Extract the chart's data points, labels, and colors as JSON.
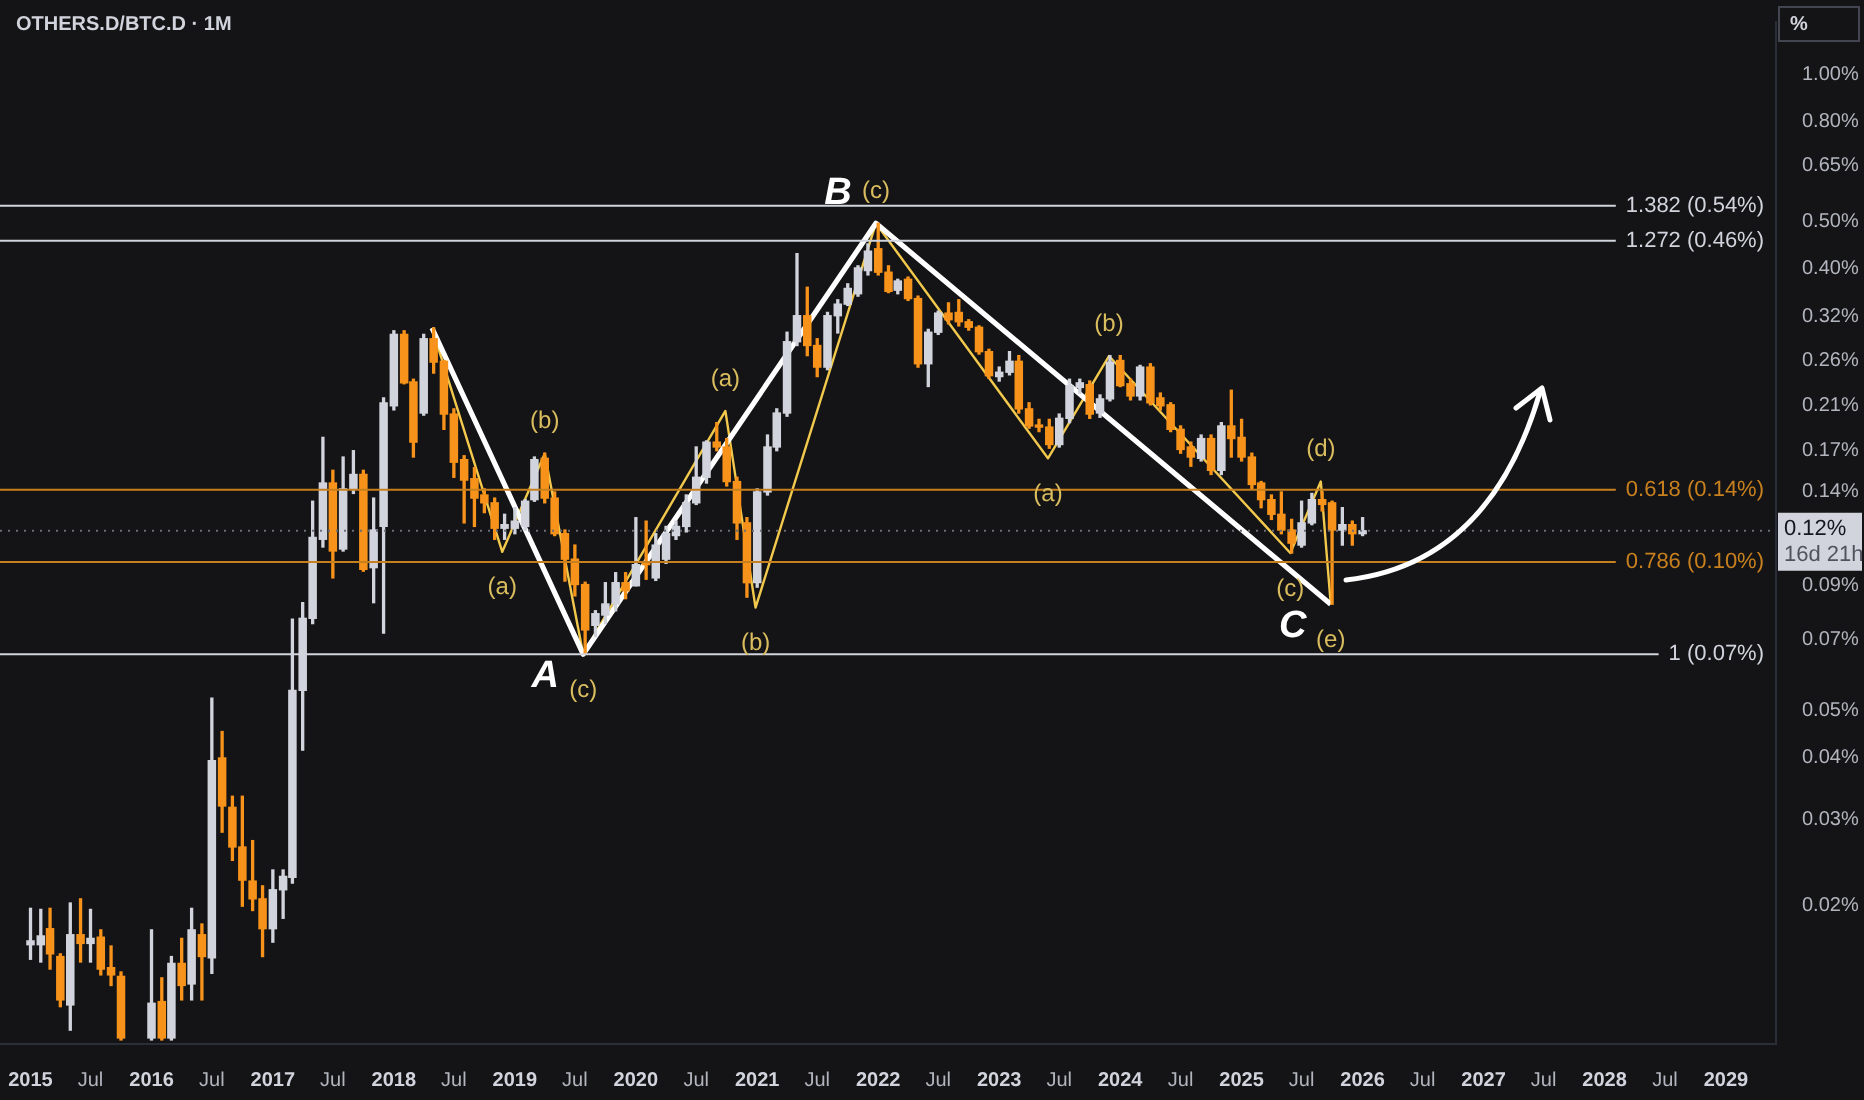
{
  "chart_data": {
    "type": "candlestick",
    "title": "OTHERS.D/BTC.D · 1M",
    "ylabel": "%",
    "log": "y",
    "x": [
      "2015-01",
      "2015-02",
      "2015-03",
      "2015-04",
      "2015-05",
      "2015-06",
      "2015-07",
      "2015-08",
      "2015-09",
      "2015-10",
      "2016-01",
      "2016-02",
      "2016-03",
      "2016-04",
      "2016-05",
      "2016-06",
      "2016-07",
      "2016-08",
      "2016-09",
      "2016-10",
      "2016-11",
      "2016-12",
      "2017-01",
      "2017-02",
      "2017-03",
      "2017-04",
      "2017-05",
      "2017-06",
      "2017-07",
      "2017-08",
      "2017-09",
      "2017-10",
      "2017-11",
      "2017-12",
      "2018-01",
      "2018-02",
      "2018-03",
      "2018-04",
      "2018-05",
      "2018-06",
      "2018-07",
      "2018-08",
      "2018-09",
      "2018-10",
      "2018-11",
      "2018-12",
      "2019-01",
      "2019-02",
      "2019-03",
      "2019-04",
      "2019-05",
      "2019-06",
      "2019-07",
      "2019-08",
      "2019-09",
      "2019-10",
      "2019-11",
      "2019-12",
      "2020-01",
      "2020-02",
      "2020-03",
      "2020-04",
      "2020-05",
      "2020-06",
      "2020-07",
      "2020-08",
      "2020-09",
      "2020-10",
      "2020-11",
      "2020-12",
      "2021-01",
      "2021-02",
      "2021-03",
      "2021-04",
      "2021-05",
      "2021-06",
      "2021-07",
      "2021-08",
      "2021-09",
      "2021-10",
      "2021-11",
      "2021-12",
      "2022-01",
      "2022-02",
      "2022-03",
      "2022-04",
      "2022-05",
      "2022-06",
      "2022-07",
      "2022-08",
      "2022-09",
      "2022-10",
      "2022-11",
      "2022-12",
      "2023-01",
      "2023-02",
      "2023-03",
      "2023-04",
      "2023-05",
      "2023-06",
      "2023-07",
      "2023-08",
      "2023-09",
      "2023-10",
      "2023-11",
      "2023-12",
      "2024-01",
      "2024-02",
      "2024-03",
      "2024-04",
      "2024-05",
      "2024-06",
      "2024-07",
      "2024-08",
      "2024-09",
      "2024-10",
      "2024-11",
      "2024-12",
      "2025-01",
      "2025-02",
      "2025-03",
      "2025-04",
      "2025-05",
      "2025-06",
      "2025-07",
      "2025-08",
      "2025-09",
      "2025-10",
      "2025-11",
      "2025-12",
      "2026-01"
    ],
    "ohlc": [
      [
        0.0166,
        0.0197,
        0.0155,
        0.0169
      ],
      [
        0.0166,
        0.0196,
        0.0153,
        0.0173
      ],
      [
        0.0179,
        0.0197,
        0.0148,
        0.0159
      ],
      [
        0.0157,
        0.0159,
        0.0124,
        0.0128
      ],
      [
        0.0125,
        0.0202,
        0.0111,
        0.0174
      ],
      [
        0.0174,
        0.0206,
        0.0153,
        0.0167
      ],
      [
        0.0167,
        0.0196,
        0.0153,
        0.0171
      ],
      [
        0.0172,
        0.0178,
        0.0144,
        0.0148
      ],
      [
        0.0149,
        0.0165,
        0.0137,
        0.0144
      ],
      [
        0.0143,
        0.0146,
        0.0106,
        0.0107
      ],
      [
        0.0107,
        0.0178,
        0.0106,
        0.0126
      ],
      [
        0.0127,
        0.0142,
        0.0106,
        0.0107
      ],
      [
        0.0107,
        0.0157,
        0.0106,
        0.0152
      ],
      [
        0.0152,
        0.0171,
        0.0128,
        0.0137
      ],
      [
        0.0138,
        0.0197,
        0.0128,
        0.0178
      ],
      [
        0.0174,
        0.0183,
        0.0128,
        0.0157
      ],
      [
        0.0156,
        0.053,
        0.0145,
        0.0395
      ],
      [
        0.04,
        0.0453,
        0.0282,
        0.0319
      ],
      [
        0.0317,
        0.0334,
        0.0247,
        0.0263
      ],
      [
        0.0263,
        0.0334,
        0.0199,
        0.0225
      ],
      [
        0.0224,
        0.0271,
        0.0195,
        0.0206
      ],
      [
        0.0206,
        0.0219,
        0.0157,
        0.0179
      ],
      [
        0.0179,
        0.0236,
        0.0168,
        0.0215
      ],
      [
        0.0215,
        0.0236,
        0.0188,
        0.0229
      ],
      [
        0.0228,
        0.0769,
        0.0222,
        0.055
      ],
      [
        0.055,
        0.0831,
        0.0415,
        0.0772
      ],
      [
        0.0772,
        0.134,
        0.0753,
        0.113
      ],
      [
        0.112,
        0.181,
        0.108,
        0.146
      ],
      [
        0.146,
        0.155,
        0.0934,
        0.106
      ],
      [
        0.107,
        0.165,
        0.106,
        0.142
      ],
      [
        0.142,
        0.17,
        0.139,
        0.152
      ],
      [
        0.152,
        0.155,
        0.0964,
        0.0972
      ],
      [
        0.098,
        0.136,
        0.0831,
        0.117
      ],
      [
        0.119,
        0.218,
        0.072,
        0.213
      ],
      [
        0.21,
        0.299,
        0.206,
        0.294
      ],
      [
        0.294,
        0.299,
        0.233,
        0.234
      ],
      [
        0.235,
        0.238,
        0.165,
        0.177
      ],
      [
        0.203,
        0.294,
        0.201,
        0.288
      ],
      [
        0.288,
        0.303,
        0.245,
        0.258
      ],
      [
        0.259,
        0.26,
        0.188,
        0.202
      ],
      [
        0.202,
        0.207,
        0.15,
        0.161
      ],
      [
        0.163,
        0.166,
        0.121,
        0.148
      ],
      [
        0.149,
        0.157,
        0.119,
        0.136
      ],
      [
        0.138,
        0.142,
        0.127,
        0.133
      ],
      [
        0.133,
        0.136,
        0.112,
        0.118
      ],
      [
        0.118,
        0.126,
        0.112,
        0.12
      ],
      [
        0.118,
        0.13,
        0.115,
        0.122
      ],
      [
        0.119,
        0.135,
        0.117,
        0.134
      ],
      [
        0.135,
        0.165,
        0.134,
        0.163
      ],
      [
        0.164,
        0.168,
        0.133,
        0.136
      ],
      [
        0.136,
        0.14,
        0.114,
        0.115
      ],
      [
        0.115,
        0.117,
        0.092,
        0.102
      ],
      [
        0.102,
        0.109,
        0.0858,
        0.0905
      ],
      [
        0.0905,
        0.0915,
        0.0655,
        0.0731
      ],
      [
        0.0747,
        0.08,
        0.0708,
        0.0789
      ],
      [
        0.0784,
        0.0913,
        0.0753,
        0.0826
      ],
      [
        0.0826,
        0.0957,
        0.08,
        0.0913
      ],
      [
        0.0913,
        0.0957,
        0.0847,
        0.0879
      ],
      [
        0.09,
        0.124,
        0.09,
        0.0994
      ],
      [
        0.1,
        0.122,
        0.0928,
        0.0994
      ],
      [
        0.0934,
        0.115,
        0.0923,
        0.109
      ],
      [
        0.102,
        0.119,
        0.1,
        0.115
      ],
      [
        0.114,
        0.122,
        0.112,
        0.119
      ],
      [
        0.119,
        0.138,
        0.116,
        0.133
      ],
      [
        0.133,
        0.173,
        0.132,
        0.15
      ],
      [
        0.15,
        0.178,
        0.146,
        0.177
      ],
      [
        0.177,
        0.194,
        0.17,
        0.173
      ],
      [
        0.173,
        0.18,
        0.144,
        0.147
      ],
      [
        0.147,
        0.15,
        0.112,
        0.121
      ],
      [
        0.121,
        0.124,
        0.0853,
        0.0913
      ],
      [
        0.0913,
        0.142,
        0.0894,
        0.14
      ],
      [
        0.14,
        0.183,
        0.138,
        0.173
      ],
      [
        0.173,
        0.207,
        0.17,
        0.203
      ],
      [
        0.203,
        0.297,
        0.2,
        0.284
      ],
      [
        0.284,
        0.43,
        0.279,
        0.321
      ],
      [
        0.321,
        0.367,
        0.266,
        0.279
      ],
      [
        0.279,
        0.288,
        0.241,
        0.252
      ],
      [
        0.252,
        0.326,
        0.249,
        0.321
      ],
      [
        0.321,
        0.346,
        0.296,
        0.339
      ],
      [
        0.339,
        0.373,
        0.337,
        0.365
      ],
      [
        0.356,
        0.406,
        0.352,
        0.402
      ],
      [
        0.397,
        0.45,
        0.389,
        0.435
      ],
      [
        0.44,
        0.496,
        0.389,
        0.394
      ],
      [
        0.394,
        0.406,
        0.358,
        0.36
      ],
      [
        0.362,
        0.381,
        0.356,
        0.378
      ],
      [
        0.381,
        0.385,
        0.345,
        0.348
      ],
      [
        0.348,
        0.352,
        0.252,
        0.256
      ],
      [
        0.256,
        0.301,
        0.23,
        0.297
      ],
      [
        0.297,
        0.328,
        0.294,
        0.325
      ],
      [
        0.325,
        0.341,
        0.309,
        0.315
      ],
      [
        0.326,
        0.346,
        0.306,
        0.312
      ],
      [
        0.312,
        0.315,
        0.3,
        0.304
      ],
      [
        0.304,
        0.306,
        0.268,
        0.271
      ],
      [
        0.271,
        0.274,
        0.239,
        0.242
      ],
      [
        0.241,
        0.252,
        0.236,
        0.246
      ],
      [
        0.246,
        0.271,
        0.243,
        0.259
      ],
      [
        0.259,
        0.266,
        0.203,
        0.207
      ],
      [
        0.207,
        0.213,
        0.189,
        0.191
      ],
      [
        0.191,
        0.197,
        0.186,
        0.19
      ],
      [
        0.19,
        0.197,
        0.172,
        0.175
      ],
      [
        0.175,
        0.202,
        0.173,
        0.198
      ],
      [
        0.198,
        0.238,
        0.194,
        0.231
      ],
      [
        0.229,
        0.238,
        0.223,
        0.234
      ],
      [
        0.232,
        0.236,
        0.198,
        0.202
      ],
      [
        0.203,
        0.221,
        0.199,
        0.217
      ],
      [
        0.217,
        0.266,
        0.215,
        0.258
      ],
      [
        0.26,
        0.266,
        0.23,
        0.231
      ],
      [
        0.233,
        0.238,
        0.216,
        0.22
      ],
      [
        0.22,
        0.254,
        0.216,
        0.252
      ],
      [
        0.252,
        0.256,
        0.211,
        0.213
      ],
      [
        0.218,
        0.223,
        0.206,
        0.21
      ],
      [
        0.211,
        0.213,
        0.186,
        0.188
      ],
      [
        0.188,
        0.191,
        0.168,
        0.171
      ],
      [
        0.173,
        0.177,
        0.158,
        0.165
      ],
      [
        0.164,
        0.183,
        0.162,
        0.18
      ],
      [
        0.18,
        0.183,
        0.152,
        0.155
      ],
      [
        0.155,
        0.194,
        0.152,
        0.191
      ],
      [
        0.191,
        0.226,
        0.165,
        0.18
      ],
      [
        0.181,
        0.197,
        0.162,
        0.165
      ],
      [
        0.165,
        0.168,
        0.142,
        0.145
      ],
      [
        0.146,
        0.147,
        0.13,
        0.135
      ],
      [
        0.135,
        0.138,
        0.123,
        0.126
      ],
      [
        0.126,
        0.14,
        0.115,
        0.117
      ],
      [
        0.117,
        0.123,
        0.105,
        0.11
      ],
      [
        0.109,
        0.134,
        0.108,
        0.121
      ],
      [
        0.121,
        0.139,
        0.12,
        0.135
      ],
      [
        0.135,
        0.14,
        0.128,
        0.132
      ],
      [
        0.133,
        0.134,
        0.0825,
        0.117
      ],
      [
        0.117,
        0.13,
        0.109,
        0.12
      ],
      [
        0.12,
        0.122,
        0.109,
        0.115
      ],
      [
        0.115,
        0.124,
        0.114,
        0.1166
      ]
    ],
    "colors": [
      "#d1d4dc",
      "#d1d4dc",
      "#f7931a",
      "#f7931a",
      "#d1d4dc",
      "#f7931a",
      "#d1d4dc",
      "#f7931a",
      "#f7931a",
      "#f7931a",
      "#d1d4dc",
      "#f7931a",
      "#d1d4dc",
      "#f7931a",
      "#d1d4dc",
      "#f7931a",
      "#d1d4dc",
      "#f7931a",
      "#f7931a",
      "#f7931a",
      "#f7931a",
      "#f7931a",
      "#d1d4dc",
      "#d1d4dc",
      "#d1d4dc",
      "#d1d4dc",
      "#d1d4dc",
      "#d1d4dc",
      "#f7931a",
      "#d1d4dc",
      "#d1d4dc",
      "#f7931a",
      "#d1d4dc",
      "#d1d4dc",
      "#d1d4dc",
      "#f7931a",
      "#f7931a",
      "#d1d4dc",
      "#f7931a",
      "#f7931a",
      "#f7931a",
      "#f7931a",
      "#f7931a",
      "#f7931a",
      "#f7931a",
      "#d1d4dc",
      "#d1d4dc",
      "#d1d4dc",
      "#d1d4dc",
      "#f7931a",
      "#f7931a",
      "#f7931a",
      "#f7931a",
      "#f7931a",
      "#d1d4dc",
      "#d1d4dc",
      "#d1d4dc",
      "#f7931a",
      "#d1d4dc",
      "#f7931a",
      "#d1d4dc",
      "#d1d4dc",
      "#d1d4dc",
      "#d1d4dc",
      "#d1d4dc",
      "#d1d4dc",
      "#f7931a",
      "#f7931a",
      "#f7931a",
      "#f7931a",
      "#d1d4dc",
      "#d1d4dc",
      "#d1d4dc",
      "#d1d4dc",
      "#d1d4dc",
      "#f7931a",
      "#f7931a",
      "#d1d4dc",
      "#d1d4dc",
      "#d1d4dc",
      "#d1d4dc",
      "#d1d4dc",
      "#f7931a",
      "#f7931a",
      "#d1d4dc",
      "#f7931a",
      "#f7931a",
      "#d1d4dc",
      "#d1d4dc",
      "#f7931a",
      "#f7931a",
      "#f7931a",
      "#f7931a",
      "#f7931a",
      "#d1d4dc",
      "#d1d4dc",
      "#f7931a",
      "#f7931a",
      "#f7931a",
      "#f7931a",
      "#d1d4dc",
      "#d1d4dc",
      "#d1d4dc",
      "#f7931a",
      "#d1d4dc",
      "#d1d4dc",
      "#f7931a",
      "#f7931a",
      "#d1d4dc",
      "#f7931a",
      "#f7931a",
      "#f7931a",
      "#f7931a",
      "#f7931a",
      "#d1d4dc",
      "#f7931a",
      "#d1d4dc",
      "#f7931a",
      "#f7931a",
      "#f7931a",
      "#f7931a",
      "#f7931a",
      "#f7931a",
      "#f7931a",
      "#d1d4dc",
      "#d1d4dc",
      "#f7931a",
      "#f7931a",
      "#d1d4dc",
      "#f7931a",
      "#d1d4dc"
    ],
    "series": [
      {
        "type": "line",
        "color": "#ffffff",
        "x": [
          "2018-04-26",
          "2019-07-26",
          "2021-12-25",
          "2025-09-27"
        ],
        "values": [
          0.303,
          0.0652,
          0.496,
          0.0825
        ]
      },
      {
        "type": "line",
        "color": "#f2c94c",
        "x": [
          "2018-04-26",
          "2018-11-24",
          "2019-04-01",
          "2019-07-26",
          "2020-09-27",
          "2020-12-27",
          "2021-12-25",
          "2023-05-28",
          "2023-11-28",
          "2025-05-28",
          "2025-08-28",
          "2025-09-27"
        ],
        "values": [
          0.303,
          0.1056,
          0.1675,
          0.0652,
          0.205,
          0.0812,
          0.496,
          0.164,
          0.2655,
          0.105,
          0.147,
          0.0825
        ]
      }
    ],
    "xlim": [
      "2014-10-01",
      "2029-06-01"
    ],
    "xticks": [
      {
        "value": "2015-01-01",
        "label": "2015"
      },
      {
        "value": "2015-07-01",
        "label": "Jul"
      },
      {
        "value": "2016-01-01",
        "label": "2016"
      },
      {
        "value": "2016-07-01",
        "label": "Jul"
      },
      {
        "value": "2017-01-01",
        "label": "2017"
      },
      {
        "value": "2017-07-01",
        "label": "Jul"
      },
      {
        "value": "2018-01-01",
        "label": "2018"
      },
      {
        "value": "2018-07-01",
        "label": "Jul"
      },
      {
        "value": "2019-01-01",
        "label": "2019"
      },
      {
        "value": "2019-07-01",
        "label": "Jul"
      },
      {
        "value": "2020-01-01",
        "label": "2020"
      },
      {
        "value": "2020-07-01",
        "label": "Jul"
      },
      {
        "value": "2021-01-01",
        "label": "2021"
      },
      {
        "value": "2021-07-01",
        "label": "Jul"
      },
      {
        "value": "2022-01-01",
        "label": "2022"
      },
      {
        "value": "2022-07-01",
        "label": "Jul"
      },
      {
        "value": "2023-01-01",
        "label": "2023"
      },
      {
        "value": "2023-07-01",
        "label": "Jul"
      },
      {
        "value": "2024-01-01",
        "label": "2024"
      },
      {
        "value": "2024-07-01",
        "label": "Jul"
      },
      {
        "value": "2025-01-01",
        "label": "2025"
      },
      {
        "value": "2025-07-01",
        "label": "Jul"
      },
      {
        "value": "2026-01-01",
        "label": "2026"
      },
      {
        "value": "2026-07-01",
        "label": "Jul"
      },
      {
        "value": "2027-01-01",
        "label": "2027"
      },
      {
        "value": "2027-07-01",
        "label": "Jul"
      },
      {
        "value": "2028-01-01",
        "label": "2028"
      },
      {
        "value": "2028-07-01",
        "label": "Jul"
      },
      {
        "value": "2029-01-01",
        "label": "2029"
      }
    ],
    "ylim": [
      0.0104,
      1.28
    ],
    "yticks": [
      {
        "value": 1,
        "label": "1.00%"
      },
      {
        "value": 0.8,
        "label": "0.80%"
      },
      {
        "value": 0.65,
        "label": "0.65%"
      },
      {
        "value": 0.5,
        "label": "0.50%"
      },
      {
        "value": 0.4,
        "label": "0.40%"
      },
      {
        "value": 0.32,
        "label": "0.32%"
      },
      {
        "value": 0.26,
        "label": "0.26%"
      },
      {
        "value": 0.21,
        "label": "0.21%"
      },
      {
        "value": 0.17,
        "label": "0.17%"
      },
      {
        "value": 0.14,
        "label": "0.14%"
      },
      {
        "value": 0.09,
        "label": "0.09%"
      },
      {
        "value": 0.07,
        "label": "0.07%"
      },
      {
        "value": 0.05,
        "label": "0.05%"
      },
      {
        "value": 0.04,
        "label": "0.04%"
      },
      {
        "value": 0.03,
        "label": "0.03%"
      },
      {
        "value": 0.02,
        "label": "0.02%"
      }
    ],
    "ref_lines": [
      {
        "axis": "y",
        "value": 0.539,
        "label": "1.382 (0.54%)",
        "color": "#d1d4dc"
      },
      {
        "axis": "y",
        "value": 0.457,
        "label": "1.272 (0.46%)",
        "color": "#d1d4dc"
      },
      {
        "axis": "y",
        "value": 0.1414,
        "label": "0.618 (0.14%)",
        "color": "#c8801e"
      },
      {
        "axis": "y",
        "value": 0.1006,
        "label": "0.786 (0.10%)",
        "color": "#c8801e"
      },
      {
        "axis": "y",
        "value": 0.0652,
        "label": "1 (0.07%)",
        "color": "#d1d4dc"
      },
      {
        "axis": "y",
        "value": 0.1166,
        "label": "0.12%",
        "color": "#6a6d78",
        "line_style": "dotted"
      }
    ],
    "annotations": [
      {
        "text": "A",
        "x": "2019-07-26",
        "y": 0.0652
      },
      {
        "text": "(c)",
        "x": "2019-07-26",
        "y": 0.0652
      },
      {
        "text": "(a)",
        "x": "2018-11-24",
        "y": 0.1056
      },
      {
        "text": "(b)",
        "x": "2019-04-01",
        "y": 0.1675
      },
      {
        "text": "(a)",
        "x": "2020-09-27",
        "y": 0.205
      },
      {
        "text": "(b)",
        "x": "2020-12-27",
        "y": 0.0812
      },
      {
        "text": "B",
        "x": "2021-12-25",
        "y": 0.496
      },
      {
        "text": "(c)",
        "x": "2021-12-25",
        "y": 0.496
      },
      {
        "text": "(a)",
        "x": "2023-05-28",
        "y": 0.164
      },
      {
        "text": "(b)",
        "x": "2023-11-28",
        "y": 0.2655
      },
      {
        "text": "(c)",
        "x": "2025-05-28",
        "y": 0.105
      },
      {
        "text": "(d)",
        "x": "2025-08-28",
        "y": 0.147
      },
      {
        "text": "C",
        "x": "2025-09-27",
        "y": 0.0825
      },
      {
        "text": "(e)",
        "x": "2025-09-27",
        "y": 0.0825
      },
      "16d 21h"
    ]
  }
}
